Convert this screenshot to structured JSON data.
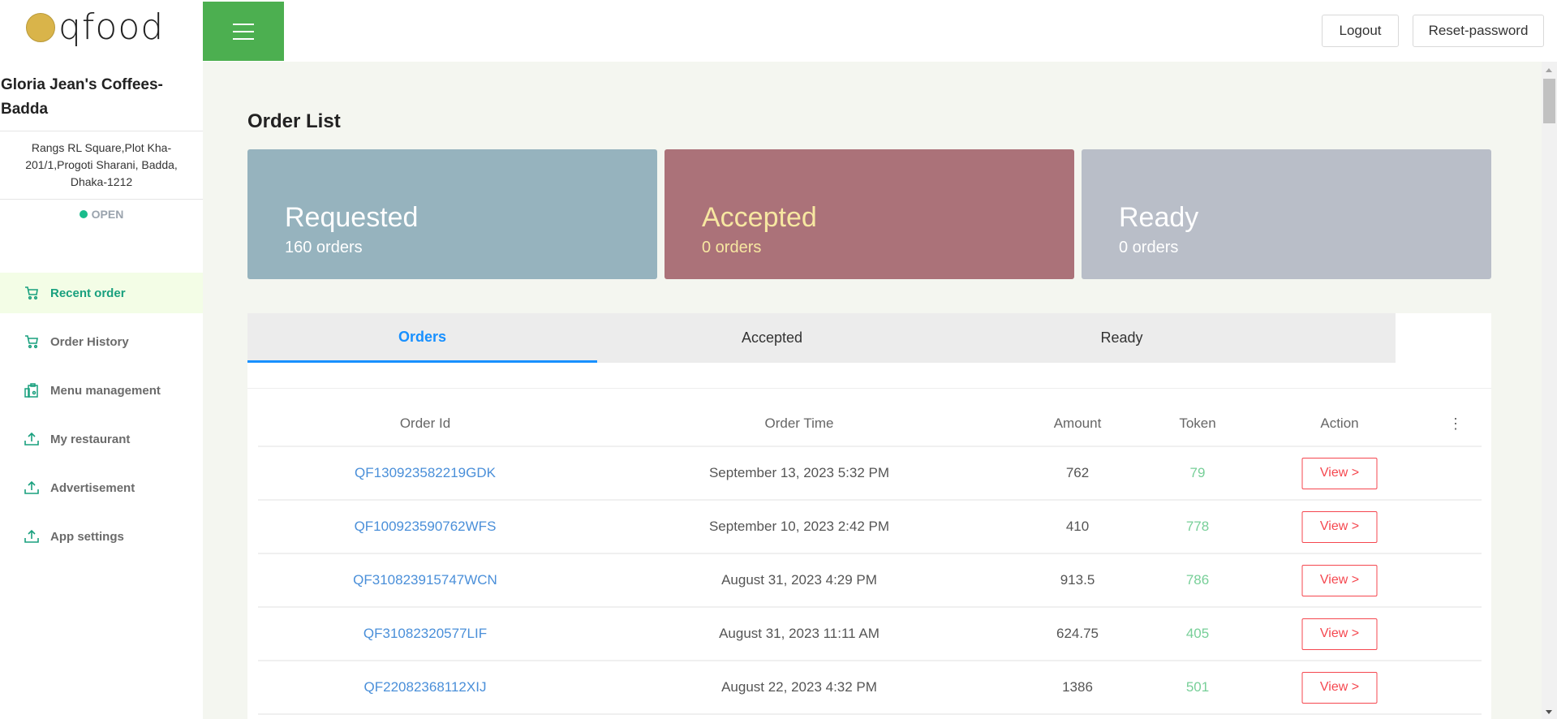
{
  "header": {
    "logo_text": "qfood",
    "logout_label": "Logout",
    "reset_label": "Reset-password"
  },
  "sidebar": {
    "restaurant_name": "Gloria Jean's Coffees-Badda",
    "address": "Rangs RL Square,Plot Kha-201/1,Progoti  Sharani, Badda, Dhaka-1212",
    "status": "OPEN",
    "items": [
      {
        "label": "Recent order",
        "icon": "cart-icon",
        "active": true
      },
      {
        "label": "Order History",
        "icon": "cart-icon",
        "active": false
      },
      {
        "label": "Menu management",
        "icon": "clipboard-icon",
        "active": false
      },
      {
        "label": "My restaurant",
        "icon": "upload-icon",
        "active": false
      },
      {
        "label": "Advertisement",
        "icon": "upload-icon",
        "active": false
      },
      {
        "label": "App settings",
        "icon": "upload-icon",
        "active": false
      }
    ]
  },
  "main": {
    "title": "Order List",
    "cards": [
      {
        "title": "Requested",
        "count": "160 orders",
        "color": "#96b3be",
        "text_color": "#ffffff"
      },
      {
        "title": "Accepted",
        "count": "0 orders",
        "color": "#ab7279",
        "text_color": "#f7e7a1"
      },
      {
        "title": "Ready",
        "count": "0 orders",
        "color": "#b9bec8",
        "text_color": "#ffffff"
      }
    ],
    "tabs": [
      {
        "label": "Orders",
        "active": true
      },
      {
        "label": "Accepted"
      },
      {
        "label": "Ready"
      }
    ],
    "table": {
      "columns": [
        "Order Id",
        "Order Time",
        "Amount",
        "Token",
        "Action"
      ],
      "rows": [
        {
          "id": "QF130923582219GDK",
          "time": "September 13, 2023 5:32 PM",
          "amount": "762",
          "token": "79",
          "action": "View >"
        },
        {
          "id": "QF100923590762WFS",
          "time": "September 10, 2023 2:42 PM",
          "amount": "410",
          "token": "778",
          "action": "View >"
        },
        {
          "id": "QF310823915747WCN",
          "time": "August 31, 2023 4:29 PM",
          "amount": "913.5",
          "token": "786",
          "action": "View >"
        },
        {
          "id": "QF31082320577LIF",
          "time": "August 31, 2023 11:11 AM",
          "amount": "624.75",
          "token": "405",
          "action": "View >"
        },
        {
          "id": "QF22082368112XIJ",
          "time": "August 22, 2023 4:32 PM",
          "amount": "1386",
          "token": "501",
          "action": "View >"
        }
      ]
    }
  }
}
